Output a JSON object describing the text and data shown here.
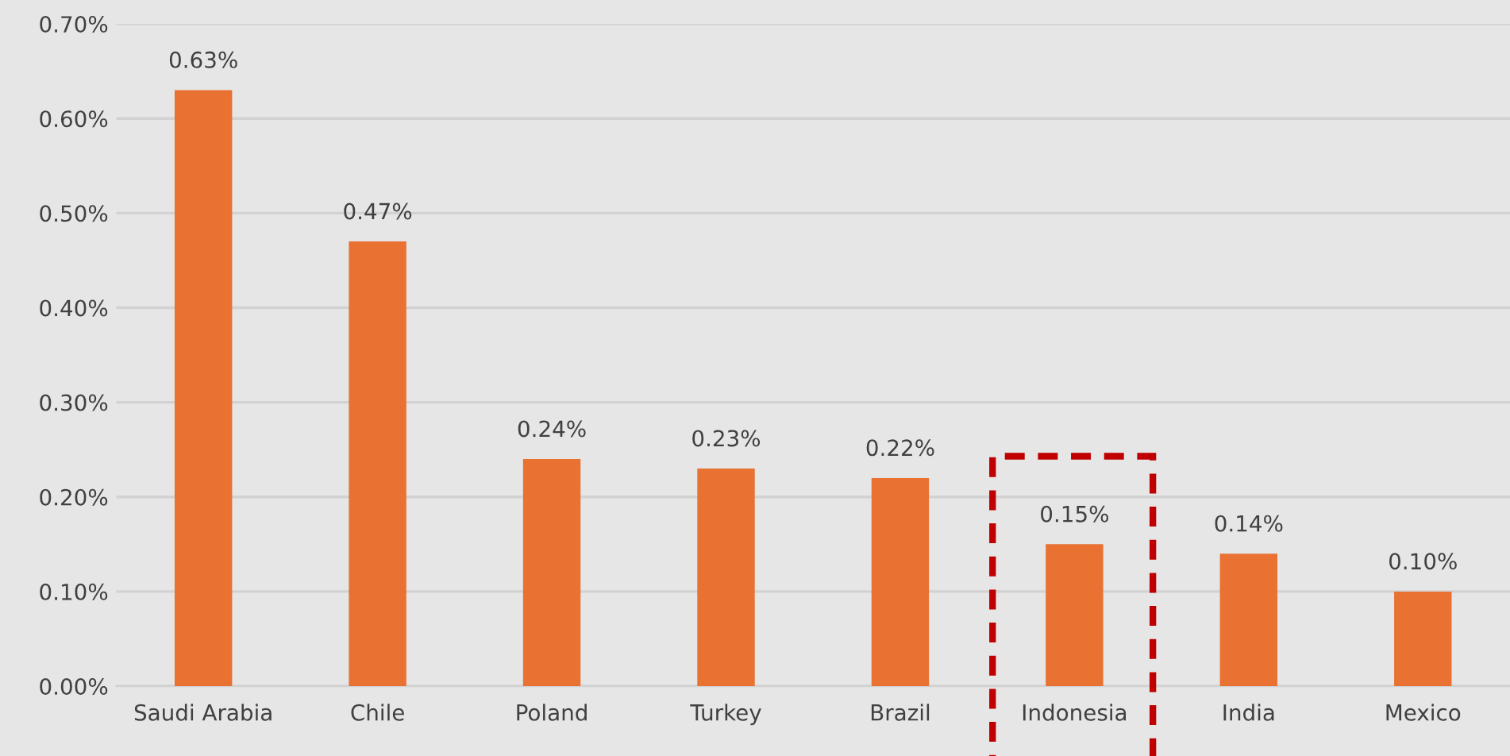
{
  "chart_data": {
    "type": "bar",
    "categories": [
      "Saudi Arabia",
      "Chile",
      "Poland",
      "Turkey",
      "Brazil",
      "Indonesia",
      "India",
      "Mexico"
    ],
    "values": [
      0.63,
      0.47,
      0.24,
      0.23,
      0.22,
      0.15,
      0.14,
      0.1
    ],
    "value_labels": [
      "0.63%",
      "0.47%",
      "0.24%",
      "0.23%",
      "0.22%",
      "0.15%",
      "0.14%",
      "0.10%"
    ],
    "color": "#e97132",
    "ylim": [
      0,
      0.7
    ],
    "yticks": [
      {
        "value": 0,
        "label": "0.00%"
      },
      {
        "value": 0.1,
        "label": "0.10%"
      },
      {
        "value": 0.2,
        "label": "0.20%"
      },
      {
        "value": 0.3,
        "label": "0.30%"
      },
      {
        "value": 0.4,
        "label": "0.40%"
      },
      {
        "value": 0.5,
        "label": "0.50%"
      },
      {
        "value": 0.6,
        "label": "0.60%"
      },
      {
        "value": 0.7,
        "label": "0.70%"
      }
    ],
    "grid": "y"
  }
}
